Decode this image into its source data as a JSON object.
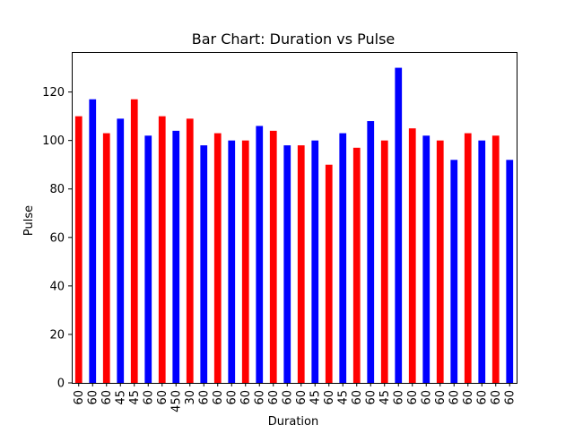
{
  "chart_data": {
    "type": "bar",
    "title": "Bar Chart: Duration vs Pulse",
    "xlabel": "Duration",
    "ylabel": "Pulse",
    "categories": [
      "60",
      "60",
      "60",
      "45",
      "45",
      "60",
      "60",
      "450",
      "30",
      "60",
      "60",
      "60",
      "60",
      "60",
      "60",
      "60",
      "60",
      "45",
      "60",
      "45",
      "60",
      "60",
      "45",
      "60",
      "60",
      "60",
      "60",
      "60",
      "60",
      "60",
      "60",
      "60"
    ],
    "values": [
      110,
      117,
      103,
      109,
      117,
      102,
      110,
      104,
      109,
      98,
      103,
      100,
      100,
      106,
      104,
      98,
      98,
      100,
      90,
      103,
      97,
      108,
      100,
      130,
      105,
      102,
      100,
      92,
      103,
      100,
      102,
      92
    ],
    "ylim": [
      0,
      136.5
    ],
    "yticks": [
      0,
      20,
      40,
      60,
      80,
      100,
      120
    ],
    "bar_colors": [
      "#ff0000",
      "#0000ff"
    ],
    "grid": false,
    "legend": "none"
  }
}
